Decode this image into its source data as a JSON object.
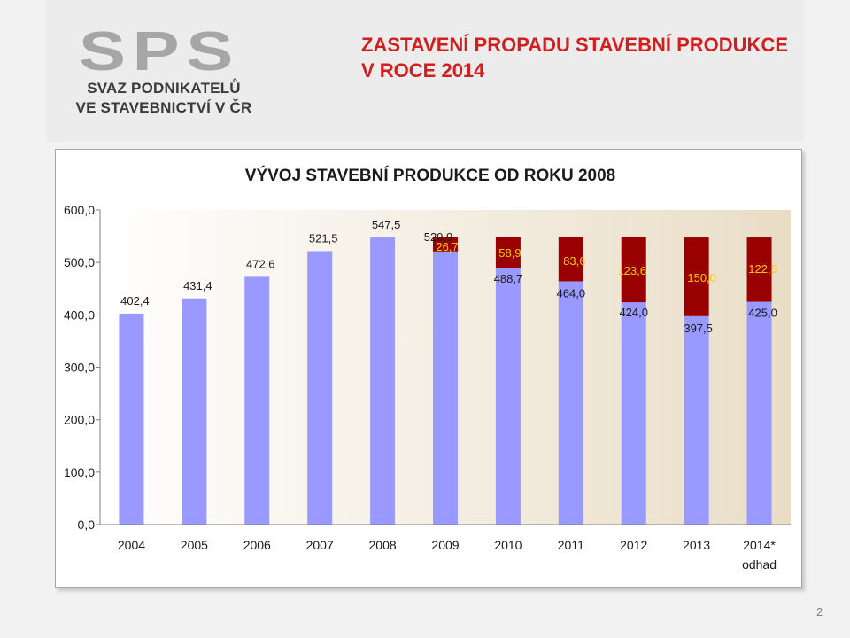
{
  "slide": {
    "title_line1": "ZASTAVENÍ PROPADU STAVEBNÍ PRODUKCE",
    "title_line2": "V ROCE 2014",
    "page_number": "2"
  },
  "logo": {
    "letters": "SPS",
    "line1": "SVAZ PODNIKATELŮ",
    "line2": "VE STAVEBNICTVÍ V ČR"
  },
  "chart_data": {
    "type": "bar",
    "stacked": true,
    "title": "VÝVOJ STAVEBNÍ PRODUKCE OD ROKU 2008",
    "categories": [
      "2004",
      "2005",
      "2006",
      "2007",
      "2008",
      "2009",
      "2010",
      "2011",
      "2012",
      "2013",
      "2014*"
    ],
    "category_sublabels": [
      "",
      "",
      "",
      "",
      "",
      "",
      "",
      "",
      "",
      "",
      "odhad"
    ],
    "ylim": [
      0,
      600
    ],
    "yticks": [
      "0,0",
      "100,0",
      "200,0",
      "300,0",
      "400,0",
      "500,0",
      "600,0"
    ],
    "ytick_values": [
      0,
      100,
      200,
      300,
      400,
      500,
      600
    ],
    "series": [
      {
        "values": [
          402.4,
          431.4,
          472.6,
          521.5,
          547.5,
          520.9,
          488.7,
          464.0,
          424.0,
          397.5,
          425.0
        ],
        "labels": [
          "402,4",
          "431,4",
          "472,6",
          "521,5",
          "547,5",
          "520,9",
          "488,7",
          "464,0",
          "424,0",
          "397,5",
          "425,0"
        ],
        "color": "#9999ff"
      },
      {
        "values": [
          0,
          0,
          0,
          0,
          0,
          26.7,
          58.9,
          83.6,
          123.6,
          150.0,
          122.5
        ],
        "labels": [
          "",
          "",
          "",
          "",
          "",
          "26,7",
          "58,9",
          "83,6",
          "123,6",
          "150,0",
          "122,5"
        ],
        "color": "#990000"
      }
    ],
    "grid": false,
    "legend": "none",
    "plot_background": [
      "#ffffff",
      "#e9ddc6"
    ],
    "label_color": "#ffcc00"
  }
}
